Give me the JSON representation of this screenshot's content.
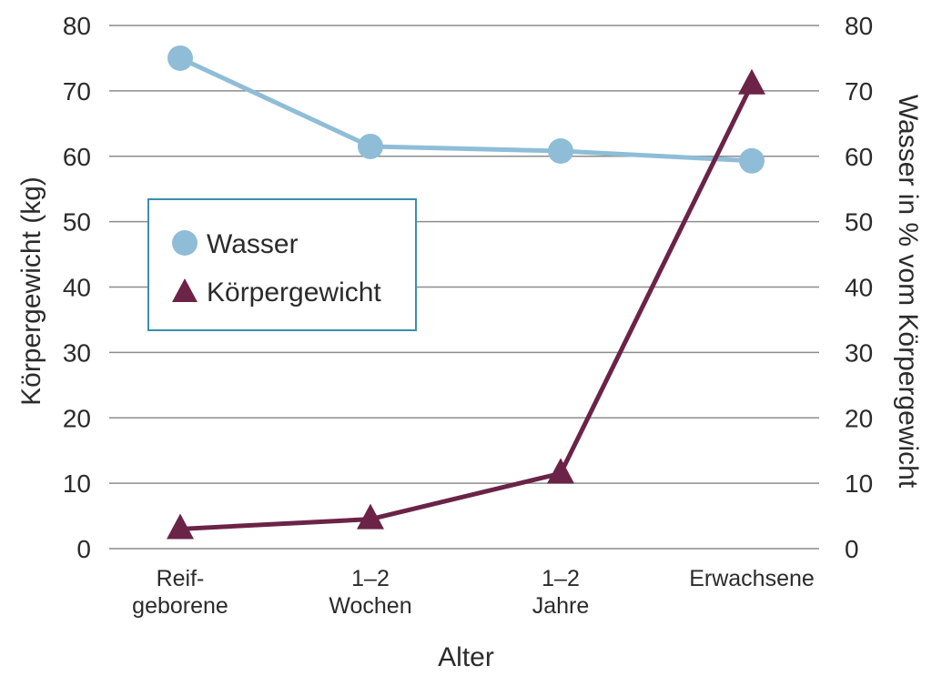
{
  "chart_data": {
    "type": "line",
    "categories": [
      "Reif-\ngeborene",
      "1–2\nWochen",
      "1–2\nJahre",
      "Erwachsene"
    ],
    "series": [
      {
        "name": "Wasser",
        "axis": "right",
        "marker": "circle",
        "color": "#8fbdd7",
        "values": [
          75,
          61.5,
          60.8,
          59.3
        ]
      },
      {
        "name": "Körpergewicht",
        "axis": "left",
        "marker": "triangle",
        "color": "#6b2347",
        "values": [
          3,
          4.5,
          11.5,
          71
        ]
      }
    ],
    "xlabel": "Alter",
    "ylabel_left": "Körpergewicht (kg)",
    "ylabel_right": "Wasser in % vom Körpergewicht",
    "ylim": [
      0,
      80
    ],
    "yticks": [
      0,
      10,
      20,
      30,
      40,
      50,
      60,
      70,
      80
    ],
    "grid": true,
    "legend": {
      "placement": "left",
      "border_color": "#3a8fae"
    }
  }
}
